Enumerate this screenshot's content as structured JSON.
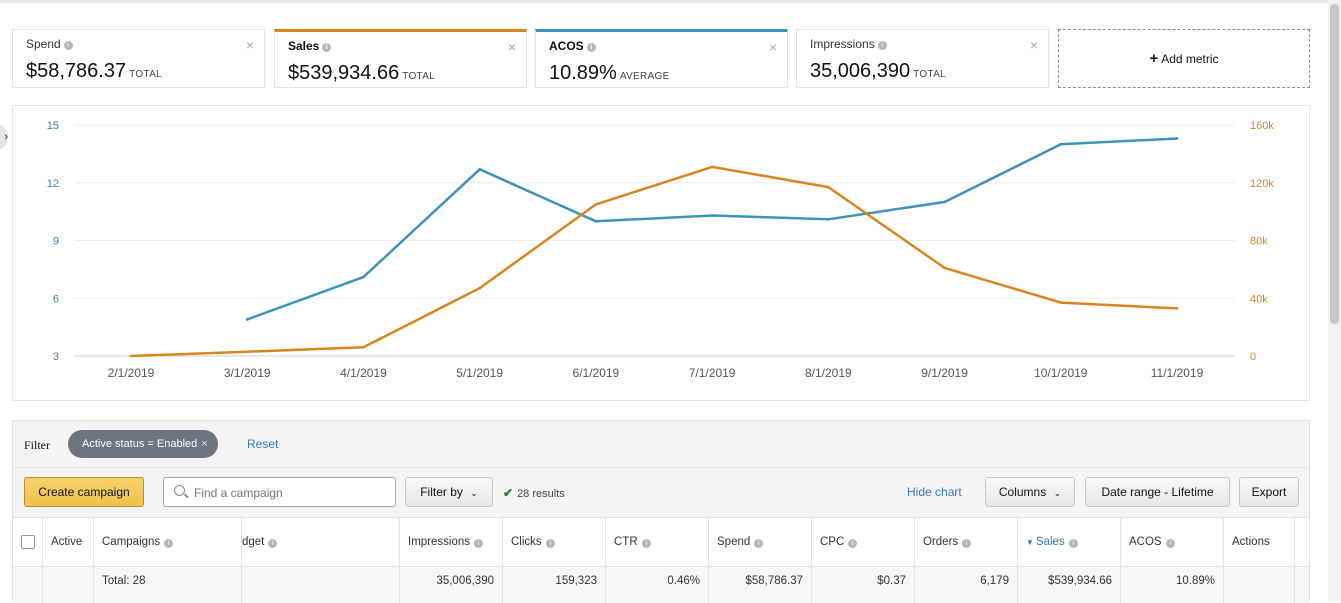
{
  "metrics": [
    {
      "name": "Spend",
      "value": "$58,786.37",
      "suffix": "TOTAL"
    },
    {
      "name": "Sales",
      "value": "$539,934.66",
      "suffix": "TOTAL"
    },
    {
      "name": "ACOS",
      "value": "10.89%",
      "suffix": "AVERAGE"
    },
    {
      "name": "Impressions",
      "value": "35,006,390",
      "suffix": "TOTAL"
    }
  ],
  "add_metric_label": "Add metric",
  "colors": {
    "acos_line": "#3e93b8",
    "sales_line": "#d9841f",
    "sales_tab_border": "#d9841f",
    "acos_tab_border": "#3e93b8",
    "link": "#347ea8",
    "primary_button": "#f0c14b",
    "pill": "#6c7580"
  },
  "chart_data": {
    "type": "line",
    "categories": [
      "2/1/2019",
      "3/1/2019",
      "4/1/2019",
      "5/1/2019",
      "6/1/2019",
      "7/1/2019",
      "8/1/2019",
      "9/1/2019",
      "10/1/2019",
      "11/1/2019"
    ],
    "series": [
      {
        "axis": "left",
        "color": "#3e93b8",
        "values": [
          null,
          4.9,
          7.1,
          12.7,
          10.0,
          10.3,
          10.1,
          11.0,
          14.0,
          14.3
        ]
      },
      {
        "axis": "right",
        "color": "#d9841f",
        "values": [
          0,
          3000,
          6000,
          47000,
          105000,
          131000,
          117000,
          61000,
          37000,
          33000
        ]
      }
    ],
    "y_left": {
      "min": 3,
      "max": 15,
      "ticks": [
        "15",
        "12",
        "9",
        "6",
        "3"
      ],
      "tick_values": [
        15,
        12,
        9,
        6,
        3
      ]
    },
    "y_right": {
      "min": 0,
      "max": 160000,
      "ticks": [
        "160k",
        "120k",
        "80k",
        "40k",
        "0"
      ],
      "tick_values": [
        160000,
        120000,
        80000,
        40000,
        0
      ]
    },
    "grid": true
  },
  "filter": {
    "label": "Filter",
    "pill": "Active status = Enabled",
    "pill_close": "×",
    "reset": "Reset"
  },
  "toolbar": {
    "create_campaign": "Create campaign",
    "search_placeholder": "Find a campaign",
    "filter_by": "Filter by",
    "results": "28 results",
    "hide_chart": "Hide chart",
    "columns": "Columns",
    "date_range": "Date range - Lifetime",
    "export": "Export"
  },
  "table": {
    "headers": [
      "Active",
      "Campaigns",
      "dget",
      "Impressions",
      "Clicks",
      "CTR",
      "Spend",
      "CPC",
      "Orders",
      "Sales",
      "ACOS",
      "Actions"
    ],
    "total_row": {
      "campaigns": "Total: 28",
      "impressions": "35,006,390",
      "clicks": "159,323",
      "ctr": "0.46%",
      "spend": "$58,786.37",
      "cpc": "$0.37",
      "orders": "6,179",
      "sales": "$539,934.66",
      "acos": "10.89%"
    }
  }
}
